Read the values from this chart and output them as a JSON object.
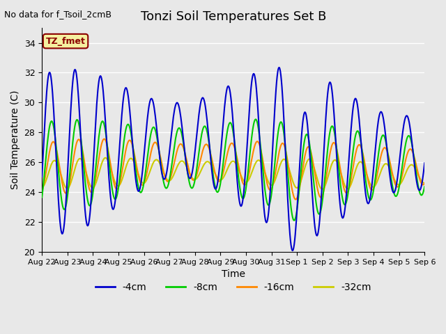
{
  "title": "Tonzi Soil Temperatures Set B",
  "no_data_label": "No data for f_Tsoil_2cmB",
  "tz_label": "TZ_fmet",
  "xlabel": "Time",
  "ylabel": "Soil Temperature (C)",
  "ylim": [
    20,
    35
  ],
  "yticks": [
    20,
    22,
    24,
    26,
    28,
    30,
    32,
    34
  ],
  "background_color": "#e8e8e8",
  "plot_bg_color": "#e8e8e8",
  "legend_labels": [
    "-4cm",
    "-8cm",
    "-16cm",
    "-32cm"
  ],
  "legend_colors": [
    "#0000cc",
    "#00cc00",
    "#ff8800",
    "#cccc00"
  ],
  "line_colors": {
    "4cm": "#0000cc",
    "8cm": "#00cc00",
    "16cm": "#ff8800",
    "32cm": "#cccc00"
  },
  "x_tick_labels": [
    "Aug 22",
    "Aug 23",
    "Aug 24",
    "Aug 25",
    "Aug 26",
    "Aug 27",
    "Aug 28",
    "Aug 29",
    "Aug 30",
    "Aug 31",
    "Sep 1",
    "Sep 2",
    "Sep 3",
    "Sep 4",
    "Sep 5",
    "Sep 6"
  ],
  "grid_color": "#ffffff",
  "grid_alpha": 1.0
}
